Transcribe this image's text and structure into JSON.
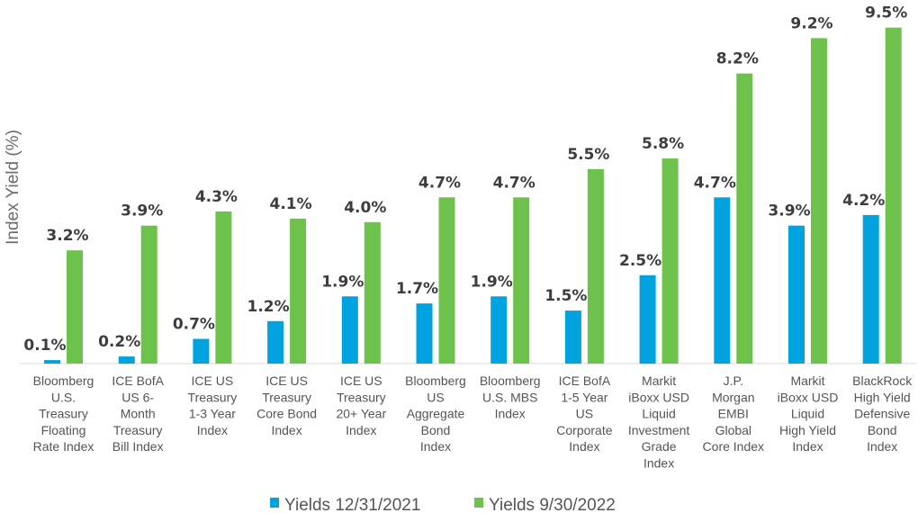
{
  "chart_data": {
    "type": "bar",
    "ylabel": "Index Yield (%)",
    "xlabel": "",
    "ylim": [
      0,
      10
    ],
    "grid": false,
    "legend_position": "bottom",
    "categories": [
      [
        "Bloomberg",
        "U.S.",
        "Treasury",
        "Floating",
        "Rate Index"
      ],
      [
        "ICE BofA",
        "US 6-",
        "Month",
        "Treasury",
        "Bill Index"
      ],
      [
        "ICE US",
        "Treasury",
        "1-3 Year",
        "Index"
      ],
      [
        "ICE US",
        "Treasury",
        "Core Bond",
        "Index"
      ],
      [
        "ICE US",
        "Treasury",
        "20+ Year",
        "Index"
      ],
      [
        "Bloomberg",
        "US",
        "Aggregate",
        "Bond",
        "Index"
      ],
      [
        "Bloomberg",
        "U.S. MBS",
        "Index"
      ],
      [
        "ICE BofA",
        "1-5 Year",
        "US",
        "Corporate",
        "Index"
      ],
      [
        "Markit",
        "iBoxx USD",
        "Liquid",
        "Investment",
        "Grade",
        "Index"
      ],
      [
        "J.P.",
        "Morgan",
        "EMBI",
        "Global",
        "Core Index"
      ],
      [
        "Markit",
        "iBoxx USD",
        "Liquid",
        "High Yield",
        "Index"
      ],
      [
        "BlackRock",
        "High Yield",
        "Defensive",
        "Bond",
        "Index"
      ]
    ],
    "series": [
      {
        "name": "Yields 12/31/2021",
        "color": "#00a3e0",
        "values": [
          0.1,
          0.2,
          0.7,
          1.2,
          1.9,
          1.7,
          1.9,
          1.5,
          2.5,
          4.7,
          3.9,
          4.2
        ],
        "labels": [
          "0.1%",
          "0.2%",
          "0.7%",
          "1.2%",
          "1.9%",
          "1.7%",
          "1.9%",
          "1.5%",
          "2.5%",
          "4.7%",
          "3.9%",
          "4.2%"
        ]
      },
      {
        "name": "Yields 9/30/2022",
        "color": "#6cc24a",
        "values": [
          3.2,
          3.9,
          4.3,
          4.1,
          4.0,
          4.7,
          4.7,
          5.5,
          5.8,
          8.2,
          9.2,
          9.5
        ],
        "labels": [
          "3.2%",
          "3.9%",
          "4.3%",
          "4.1%",
          "4.0%",
          "4.7%",
          "4.7%",
          "5.5%",
          "5.8%",
          "8.2%",
          "9.2%",
          "9.5%"
        ]
      }
    ]
  }
}
